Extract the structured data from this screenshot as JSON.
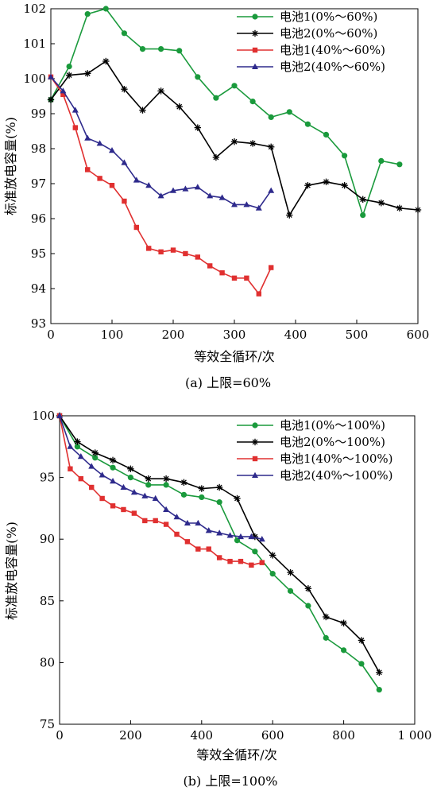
{
  "figure": {
    "charts": [
      {
        "id": "a",
        "caption": "(a) 上限=60%",
        "xlabel": "等效全循环/次",
        "ylabel": "标准放电容量(%)",
        "xticks": [
          "0",
          "100",
          "200",
          "300",
          "400",
          "500",
          "600"
        ],
        "yticks": [
          "93",
          "94",
          "95",
          "96",
          "97",
          "98",
          "99",
          "100",
          "101",
          "102"
        ]
      },
      {
        "id": "b",
        "caption": "(b) 上限=100%",
        "xlabel": "等效全循环/次",
        "ylabel": "标准放电容量(%)",
        "xticks": [
          "0",
          "200",
          "400",
          "600",
          "800",
          "1 000"
        ],
        "yticks": [
          "75",
          "80",
          "85",
          "90",
          "95",
          "100"
        ]
      }
    ]
  },
  "chart_data": [
    {
      "type": "line",
      "title": "",
      "caption": "(a) 上限=60%",
      "xlabel": "等效全循环/次",
      "ylabel": "标准放电容量(%)",
      "xlim": [
        0,
        600
      ],
      "ylim": [
        93,
        102
      ],
      "grid": false,
      "legend_position": "top-right",
      "series": [
        {
          "name": "电池1(0%～60%)",
          "color": "#1a9a3c",
          "marker": "circle",
          "x": [
            0,
            30,
            60,
            90,
            120,
            150,
            180,
            210,
            240,
            270,
            300,
            330,
            360,
            390,
            420,
            450,
            480,
            510,
            540,
            570
          ],
          "y": [
            99.4,
            100.35,
            101.85,
            102.0,
            101.3,
            100.85,
            100.85,
            100.8,
            100.05,
            99.45,
            99.8,
            99.35,
            98.9,
            99.05,
            98.7,
            98.4,
            97.8,
            96.1,
            97.65,
            97.55
          ]
        },
        {
          "name": "电池2(0%～60%)",
          "color": "#000000",
          "marker": "star",
          "x": [
            0,
            30,
            60,
            90,
            120,
            150,
            180,
            210,
            240,
            270,
            300,
            330,
            360,
            390,
            420,
            450,
            480,
            510,
            540,
            570,
            600
          ],
          "y": [
            99.4,
            100.1,
            100.15,
            100.5,
            99.7,
            99.1,
            99.65,
            99.2,
            98.6,
            97.75,
            98.2,
            98.15,
            98.05,
            96.1,
            96.95,
            97.05,
            96.95,
            96.55,
            96.45,
            96.3,
            96.25
          ]
        },
        {
          "name": "电池1(40%～60%)",
          "color": "#e03030",
          "marker": "square",
          "x": [
            0,
            20,
            40,
            60,
            80,
            100,
            120,
            140,
            160,
            180,
            200,
            220,
            240,
            260,
            280,
            300,
            320,
            340,
            360
          ],
          "y": [
            100.05,
            99.55,
            98.6,
            97.4,
            97.15,
            96.95,
            96.5,
            95.75,
            95.15,
            95.05,
            95.1,
            95.0,
            94.9,
            94.65,
            94.45,
            94.3,
            94.3,
            93.85,
            94.6
          ]
        },
        {
          "name": "电池2(40%～60%)",
          "color": "#2e2a8c",
          "marker": "triangle",
          "x": [
            0,
            20,
            40,
            60,
            80,
            100,
            120,
            140,
            160,
            180,
            200,
            220,
            240,
            260,
            280,
            300,
            320,
            340,
            360
          ],
          "y": [
            100.05,
            99.65,
            99.1,
            98.3,
            98.15,
            97.95,
            97.6,
            97.1,
            96.95,
            96.65,
            96.8,
            96.85,
            96.9,
            96.65,
            96.6,
            96.4,
            96.4,
            96.3,
            96.8
          ]
        }
      ]
    },
    {
      "type": "line",
      "title": "",
      "caption": "(b) 上限=100%",
      "xlabel": "等效全循环/次",
      "ylabel": "标准放电容量(%)",
      "xlim": [
        0,
        1000
      ],
      "ylim": [
        75,
        100
      ],
      "grid": false,
      "legend_position": "top-right",
      "series": [
        {
          "name": "电池1(0%～100%)",
          "color": "#1a9a3c",
          "marker": "circle",
          "x": [
            0,
            50,
            100,
            150,
            200,
            250,
            300,
            350,
            400,
            450,
            500,
            550,
            600,
            650,
            700,
            750,
            800,
            850,
            900
          ],
          "y": [
            100.0,
            97.5,
            96.6,
            95.8,
            95.0,
            94.4,
            94.4,
            93.6,
            93.4,
            93.0,
            89.9,
            89.0,
            87.2,
            85.8,
            84.6,
            82.0,
            81.0,
            79.9,
            77.8
          ]
        },
        {
          "name": "电池2(0%～100%)",
          "color": "#000000",
          "marker": "star",
          "x": [
            0,
            50,
            100,
            150,
            200,
            250,
            300,
            350,
            400,
            450,
            500,
            550,
            600,
            650,
            700,
            750,
            800,
            850,
            900
          ],
          "y": [
            100.0,
            97.9,
            97.0,
            96.4,
            95.7,
            94.9,
            94.9,
            94.6,
            94.1,
            94.2,
            93.3,
            90.2,
            88.7,
            87.3,
            86.0,
            83.7,
            83.2,
            81.8,
            79.2
          ]
        },
        {
          "name": "电池1(40%～100%)",
          "color": "#e03030",
          "marker": "square",
          "x": [
            0,
            30,
            60,
            90,
            120,
            150,
            180,
            210,
            240,
            270,
            300,
            330,
            360,
            390,
            420,
            450,
            480,
            510,
            540,
            570
          ],
          "y": [
            100.0,
            95.7,
            94.9,
            94.2,
            93.3,
            92.7,
            92.4,
            92.1,
            91.5,
            91.5,
            91.2,
            90.4,
            89.8,
            89.2,
            89.2,
            88.5,
            88.2,
            88.2,
            87.9,
            88.1
          ]
        },
        {
          "name": "电池2(40%～100%)",
          "color": "#2e2a8c",
          "marker": "triangle",
          "x": [
            0,
            30,
            60,
            90,
            120,
            150,
            180,
            210,
            240,
            270,
            300,
            330,
            360,
            390,
            420,
            450,
            480,
            510,
            540,
            570
          ],
          "y": [
            100.0,
            97.5,
            96.7,
            95.9,
            95.2,
            94.7,
            94.2,
            93.8,
            93.5,
            93.3,
            92.4,
            91.8,
            91.3,
            91.3,
            90.7,
            90.5,
            90.3,
            90.2,
            90.2,
            90.0
          ]
        }
      ]
    }
  ]
}
